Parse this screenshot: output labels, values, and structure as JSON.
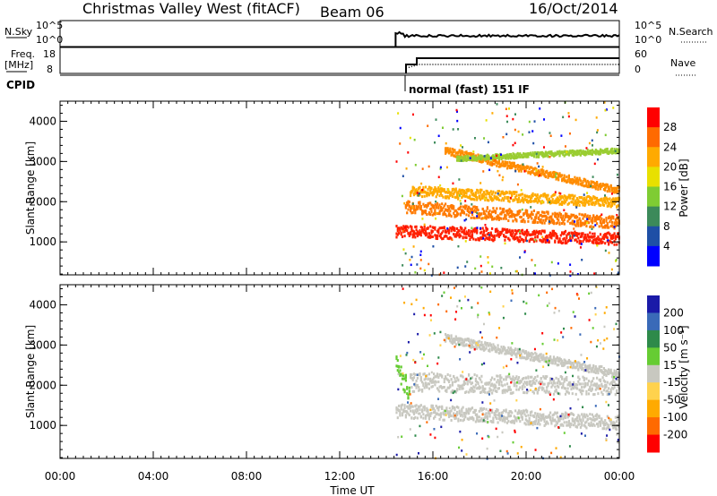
{
  "header": {
    "title": "Christmas Valley West (fitACF)",
    "beam": "Beam 06",
    "date": "16/Oct/2014"
  },
  "status_panels": {
    "nsky_label": "N.Sky",
    "nsky_ticks": [
      "10^5",
      "10^0"
    ],
    "nsearch_label": "N.Search",
    "nsearch_ticks": [
      "10^5",
      "10^0"
    ],
    "freq_label": "Freq.",
    "freq_unit": "[MHz]",
    "freq_ticks": [
      "18",
      "8"
    ],
    "nave_label": "Nave",
    "nave_ticks": [
      "60",
      "0"
    ],
    "cpid_label": "CPID",
    "cpid_text": "normal (fast) 151 IF"
  },
  "chart_data": [
    {
      "type": "heatmap",
      "title": "",
      "xlabel": "Time UT",
      "ylabel": "Slant Range [km]",
      "x_ticks": [
        "00:00",
        "04:00",
        "08:00",
        "12:00",
        "16:00",
        "20:00",
        "00:00"
      ],
      "xlim": [
        0,
        24
      ],
      "y_ticks": [
        "1000",
        "2000",
        "3000",
        "4000"
      ],
      "ylim": [
        180,
        4500
      ],
      "colorbar": {
        "label": "Power [dB]",
        "ticks": [
          "28",
          "24",
          "20",
          "16",
          "12",
          "8",
          "4"
        ],
        "colors": [
          "#ff0000",
          "#ff6a00",
          "#ffaa00",
          "#e8e000",
          "#7fcc33",
          "#3c8a5a",
          "#1e4fa6",
          "#0000ff"
        ]
      },
      "data_start_hour": 14.4,
      "echo_bands": [
        {
          "start": 14.4,
          "end": 24,
          "range_start": 1300,
          "range_end": 1100,
          "width": 300,
          "color": "#ff2000"
        },
        {
          "start": 14.8,
          "end": 24,
          "range_start": 1900,
          "range_end": 1500,
          "width": 300,
          "color": "#ff7a00"
        },
        {
          "start": 15.0,
          "end": 24,
          "range_start": 2300,
          "range_end": 2000,
          "width": 250,
          "color": "#ffaa00"
        },
        {
          "start": 16.5,
          "end": 24,
          "range_start": 3300,
          "range_end": 2300,
          "width": 180,
          "color": "#ff8c00"
        },
        {
          "start": 17.0,
          "end": 24,
          "range_start": 3100,
          "range_end": 3300,
          "width": 120,
          "color": "#9acd32"
        }
      ]
    },
    {
      "type": "heatmap",
      "title": "",
      "xlabel": "Time UT",
      "ylabel": "Slant Range [km]",
      "x_ticks": [
        "00:00",
        "04:00",
        "08:00",
        "12:00",
        "16:00",
        "20:00",
        "00:00"
      ],
      "xlim": [
        0,
        24
      ],
      "y_ticks": [
        "1000",
        "2000",
        "3000",
        "4000"
      ],
      "ylim": [
        180,
        4500
      ],
      "colorbar": {
        "label": "Velocity [m s⁻¹]",
        "ticks": [
          "200",
          "100",
          "50",
          "15",
          "-15",
          "-50",
          "-100",
          "-200"
        ],
        "colors": [
          "#1a1aa8",
          "#3a6ab8",
          "#2e8a4a",
          "#66cc33",
          "#c8c8c0",
          "#ffd24d",
          "#ffaa00",
          "#ff6a00",
          "#ff0000"
        ]
      },
      "data_start_hour": 14.4,
      "echo_bands": [
        {
          "start": 14.4,
          "end": 24,
          "range_start": 1400,
          "range_end": 1100,
          "width": 350,
          "color": "#c8c8c0"
        },
        {
          "start": 15.0,
          "end": 24,
          "range_start": 2100,
          "range_end": 2000,
          "width": 450,
          "color": "#c8c8c0"
        },
        {
          "start": 16.5,
          "end": 24,
          "range_start": 3200,
          "range_end": 2300,
          "width": 200,
          "color": "#c8c8c0"
        },
        {
          "start": 14.4,
          "end": 15.0,
          "range_start": 2500,
          "range_end": 1800,
          "width": 500,
          "color": "#66cc33"
        }
      ]
    }
  ]
}
